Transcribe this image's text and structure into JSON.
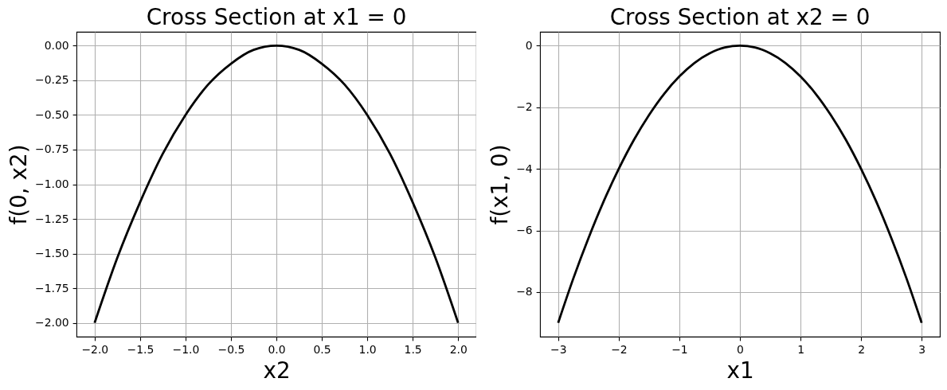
{
  "chart_data": [
    {
      "type": "line",
      "title": "Cross Section at x1 = 0",
      "xlabel": "x2",
      "ylabel": "f(0, x2)",
      "x": [
        -2,
        -1.75,
        -1.5,
        -1.25,
        -1,
        -0.75,
        -0.5,
        -0.25,
        0,
        0.25,
        0.5,
        0.75,
        1,
        1.25,
        1.5,
        1.75,
        2
      ],
      "series": [
        {
          "color": "#000000",
          "values": [
            -2,
            -1.53,
            -1.13,
            -0.78,
            -0.5,
            -0.28,
            -0.13,
            -0.03,
            0,
            -0.03,
            -0.13,
            -0.28,
            -0.5,
            -0.78,
            -1.13,
            -1.53,
            -2
          ]
        }
      ],
      "xlim": [
        -2.2,
        2.2
      ],
      "ylim": [
        -2.1,
        0.1
      ],
      "xticks": [
        {
          "value": -2,
          "label": "−2.0"
        },
        {
          "value": -1.5,
          "label": "−1.5"
        },
        {
          "value": -1,
          "label": "−1.0"
        },
        {
          "value": -0.5,
          "label": "−0.5"
        },
        {
          "value": 0,
          "label": "0.0"
        },
        {
          "value": 0.5,
          "label": "0.5"
        },
        {
          "value": 1,
          "label": "1.0"
        },
        {
          "value": 1.5,
          "label": "1.5"
        },
        {
          "value": 2,
          "label": "2.0"
        }
      ],
      "yticks": [
        {
          "value": -2,
          "label": "−2.00"
        },
        {
          "value": -1.75,
          "label": "−1.75"
        },
        {
          "value": -1.5,
          "label": "−1.50"
        },
        {
          "value": -1.25,
          "label": "−1.25"
        },
        {
          "value": -1,
          "label": "−1.00"
        },
        {
          "value": -0.75,
          "label": "−0.75"
        },
        {
          "value": -0.5,
          "label": "−0.50"
        },
        {
          "value": -0.25,
          "label": "−0.25"
        },
        {
          "value": 0,
          "label": "0.00"
        }
      ],
      "grid": true
    },
    {
      "type": "line",
      "title": "Cross Section at x2 = 0",
      "xlabel": "x1",
      "ylabel": "f(x1, 0)",
      "x": [
        -3,
        -2.75,
        -2.5,
        -2.25,
        -2,
        -1.75,
        -1.5,
        -1.25,
        -1,
        -0.75,
        -0.5,
        -0.25,
        0,
        0.25,
        0.5,
        0.75,
        1,
        1.25,
        1.5,
        1.75,
        2,
        2.25,
        2.5,
        2.75,
        3
      ],
      "series": [
        {
          "color": "#000000",
          "values": [
            -9,
            -7.56,
            -6.25,
            -5.06,
            -4,
            -3.06,
            -2.25,
            -1.56,
            -1,
            -0.56,
            -0.25,
            -0.06,
            0,
            -0.06,
            -0.25,
            -0.56,
            -1,
            -1.56,
            -2.25,
            -3.06,
            -4,
            -5.06,
            -6.25,
            -7.56,
            -9
          ]
        }
      ],
      "xlim": [
        -3.3,
        3.3
      ],
      "ylim": [
        -9.45,
        0.45
      ],
      "xticks": [
        {
          "value": -3,
          "label": "−3"
        },
        {
          "value": -2,
          "label": "−2"
        },
        {
          "value": -1,
          "label": "−1"
        },
        0,
        1,
        2,
        3
      ],
      "yticks": [
        {
          "value": -8,
          "label": "−8"
        },
        {
          "value": -6,
          "label": "−6"
        },
        {
          "value": -4,
          "label": "−4"
        },
        {
          "value": -2,
          "label": "−2"
        },
        0
      ],
      "grid": true
    }
  ]
}
